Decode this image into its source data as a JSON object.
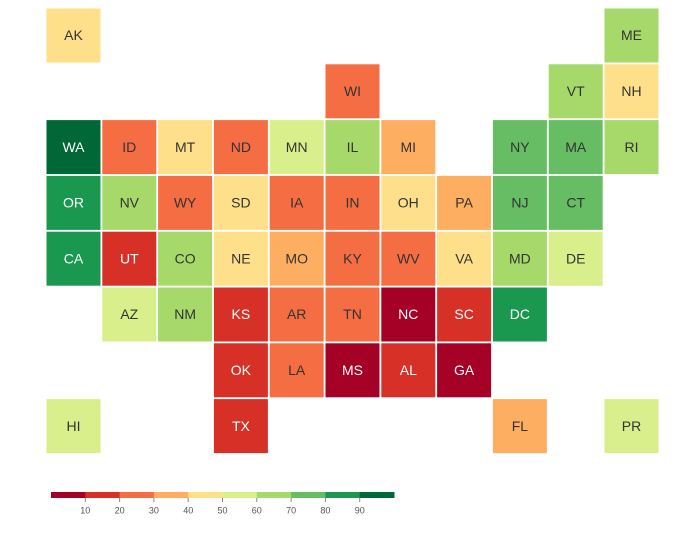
{
  "chart_data": {
    "type": "tilemap",
    "states": [
      "AK",
      "ME",
      "WI",
      "VT",
      "NH",
      "WA",
      "ID",
      "MT",
      "ND",
      "MN",
      "IL",
      "MI",
      "NY",
      "MA",
      "RI",
      "OR",
      "NV",
      "WY",
      "SD",
      "IA",
      "IN",
      "OH",
      "PA",
      "NJ",
      "CT",
      "CA",
      "UT",
      "CO",
      "NE",
      "MO",
      "KY",
      "WV",
      "VA",
      "MD",
      "DE",
      "AZ",
      "NM",
      "KS",
      "AR",
      "TN",
      "NC",
      "SC",
      "DC",
      "OK",
      "LA",
      "MS",
      "AL",
      "GA",
      "HI",
      "TX",
      "FL",
      "PR"
    ],
    "values": [
      45,
      65,
      25,
      65,
      45,
      95,
      25,
      45,
      25,
      55,
      65,
      35,
      75,
      75,
      65,
      85,
      65,
      25,
      45,
      25,
      25,
      45,
      35,
      75,
      75,
      85,
      15,
      65,
      45,
      35,
      25,
      25,
      45,
      65,
      55,
      55,
      65,
      15,
      25,
      25,
      5,
      15,
      85,
      15,
      25,
      5,
      15,
      5,
      55,
      15,
      35,
      55
    ],
    "colorbar": {
      "range": [
        0,
        100
      ],
      "ticks": [
        10,
        20,
        30,
        40,
        50,
        60,
        70,
        80,
        90
      ],
      "colors": [
        "#a50026",
        "#d73027",
        "#f46d43",
        "#fdae61",
        "#fee08b",
        "#d9ef8b",
        "#a6d96a",
        "#66bd63",
        "#1a9850",
        "#006837"
      ]
    }
  }
}
